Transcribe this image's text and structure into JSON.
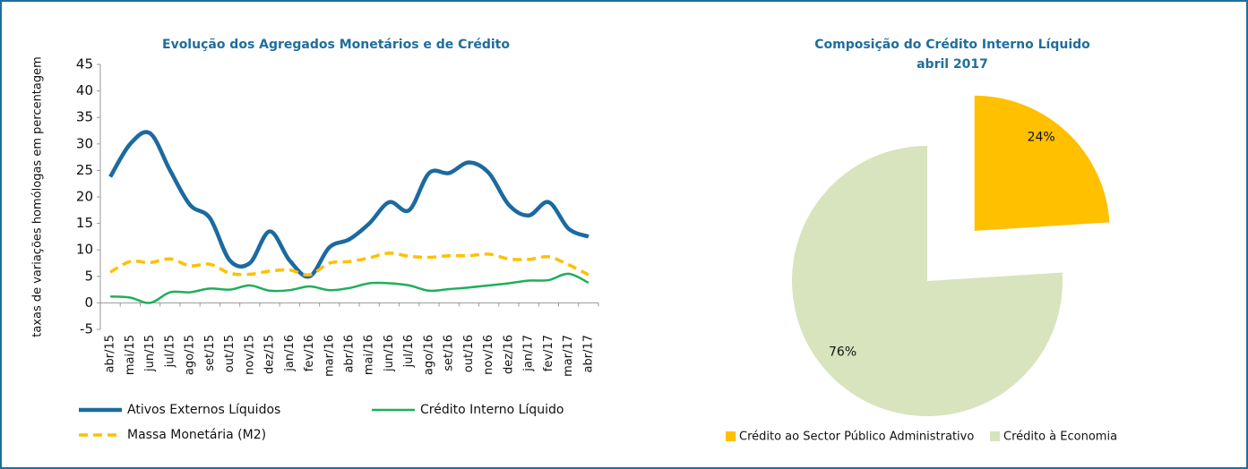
{
  "chart_data": [
    {
      "type": "line",
      "title": "Evolução dos Agregados Monetários e de Crédito",
      "y_label": "taxas de variações homólogas em percentagem",
      "categories": [
        "abr/15",
        "mai/15",
        "jun/15",
        "jul/15",
        "ago/15",
        "set/15",
        "out/15",
        "nov/15",
        "dez/15",
        "jan/16",
        "fev/16",
        "mar/16",
        "abr/16",
        "mai/16",
        "jun/16",
        "jul/16",
        "ago/16",
        "set/16",
        "out/16",
        "nov/16",
        "dez/16",
        "jan/17",
        "fev/17",
        "mar/17",
        "abr/17"
      ],
      "series": [
        {
          "name": "Ativos Externos Líquidos",
          "color": "#1b6aa0",
          "linestyle": "solid",
          "values": [
            23.8,
            30,
            32,
            25,
            18.5,
            16,
            8,
            7.5,
            13.5,
            8,
            5,
            10.5,
            12,
            15,
            19,
            17.5,
            24.5,
            24.5,
            26.5,
            24.5,
            18.5,
            16.5,
            19,
            14,
            12.5
          ]
        },
        {
          "name": "Crédito Interno Líquido",
          "color": "#1faf5a",
          "linestyle": "solid",
          "values": [
            1.2,
            1.0,
            0,
            2.0,
            2.0,
            2.7,
            2.5,
            3.3,
            2.3,
            2.4,
            3.1,
            2.4,
            2.8,
            3.7,
            3.7,
            3.3,
            2.3,
            2.6,
            2.9,
            3.3,
            3.7,
            4.2,
            4.3,
            5.5,
            3.8
          ]
        },
        {
          "name": "Massa Monetária (M2)",
          "color": "#ffc000",
          "linestyle": "dashed",
          "values": [
            5.8,
            7.8,
            7.6,
            8.3,
            7.0,
            7.3,
            5.6,
            5.4,
            6.0,
            6.2,
            5.3,
            7.5,
            7.8,
            8.5,
            9.4,
            8.8,
            8.6,
            8.9,
            8.9,
            9.2,
            8.3,
            8.2,
            8.7,
            7.2,
            5.3
          ]
        }
      ],
      "ylim": [
        -5,
        45
      ],
      "yticks": [
        -5,
        0,
        5,
        10,
        15,
        20,
        25,
        30,
        35,
        40,
        45
      ],
      "grid": false
    },
    {
      "type": "pie",
      "title": "Composição do Crédito Interno Líquido",
      "subtitle": "abril 2017",
      "categories": [
        "Crédito ao Sector Público Administrativo",
        "Crédito à Economia"
      ],
      "values": [
        24,
        76
      ],
      "value_labels": [
        "24%",
        "76%"
      ],
      "colors": [
        "#ffc000",
        "#d7e4bd"
      ],
      "explode": [
        true,
        false
      ]
    }
  ]
}
